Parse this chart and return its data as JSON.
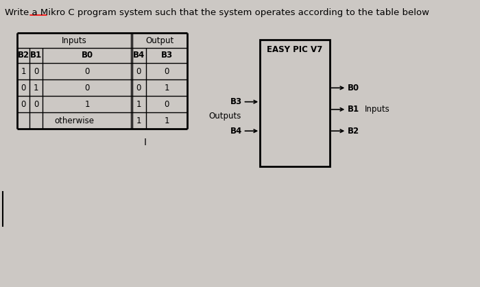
{
  "title": "Write a Mikro C program system such that the system operates according to the table below",
  "bg_color": "#ccc8c4",
  "table_header_inputs": "Inputs",
  "table_header_output": "Output",
  "col_headers": [
    "B2",
    "B1",
    "B0",
    "B4",
    "B3"
  ],
  "rows": [
    [
      "1",
      "0",
      "0",
      "0",
      "0"
    ],
    [
      "0",
      "1",
      "0",
      "0",
      "1"
    ],
    [
      "0",
      "0",
      "1",
      "1",
      "0"
    ],
    [
      "otherwise",
      "",
      "",
      "1",
      "1"
    ]
  ],
  "chip_label": "EASY PIC V7",
  "chip_left_labels": [
    "B3",
    "B4"
  ],
  "chip_right_labels": [
    "B0",
    "B1",
    "B2"
  ],
  "chip_left_group": "Outputs",
  "chip_right_group": "Inputs",
  "cursor_symbol": "I",
  "font_size_title": 9.5,
  "font_size_table": 8.5,
  "font_size_chip": 8.5
}
